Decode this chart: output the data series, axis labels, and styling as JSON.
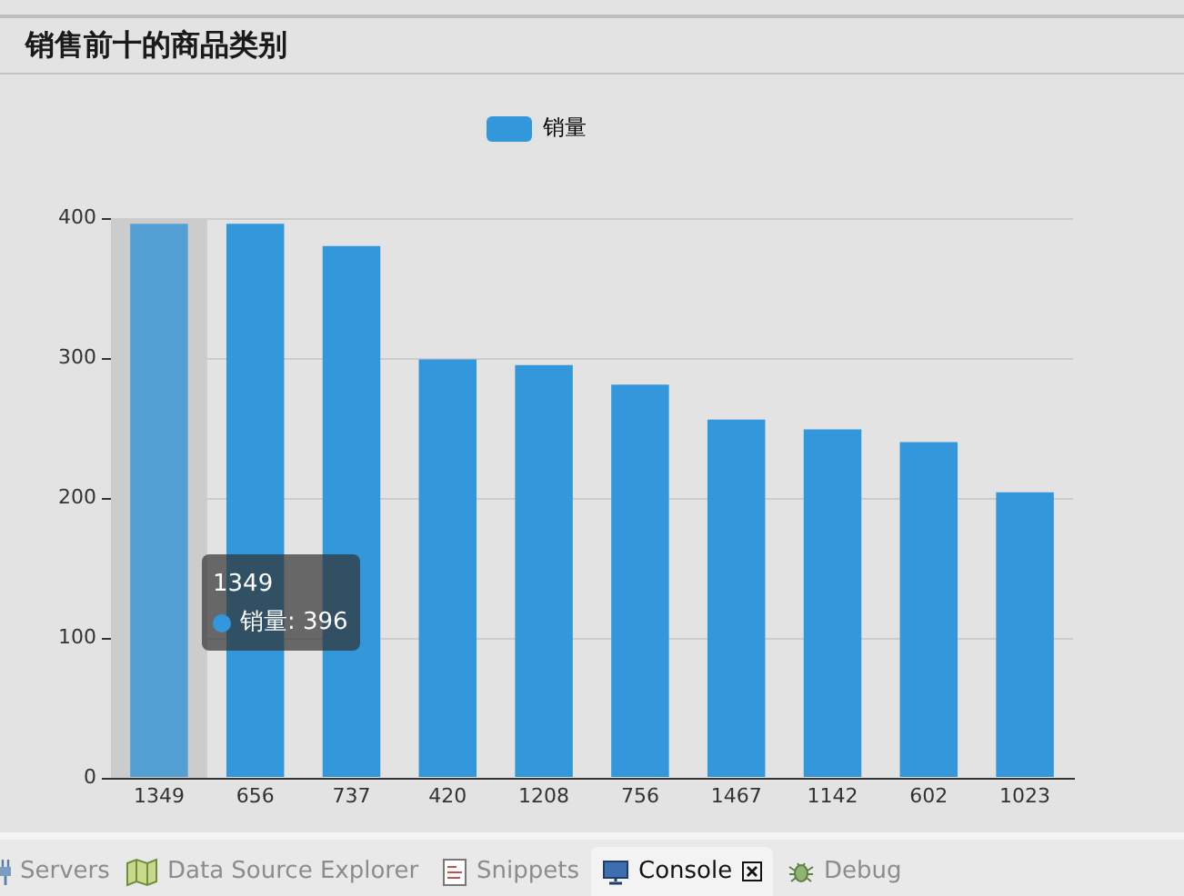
{
  "chart_data": {
    "type": "bar",
    "title": "销售前十的商品类别",
    "categories": [
      "1349",
      "656",
      "737",
      "420",
      "1208",
      "756",
      "1467",
      "1142",
      "602",
      "1023"
    ],
    "series": [
      {
        "name": "销量",
        "color": "#3398db",
        "colors": [
          "#53a0d5",
          "#3398db",
          "#3398db",
          "#3398db",
          "#3398db",
          "#3398db",
          "#3398db",
          "#3398db",
          "#3398db",
          "#3398db"
        ],
        "values": [
          396,
          396,
          380,
          299,
          295,
          281,
          256,
          249,
          240,
          204
        ]
      }
    ],
    "ylim": [
      0,
      400
    ],
    "yticks": [
      0,
      100,
      200,
      300,
      400
    ],
    "grid": "y",
    "legend": "top",
    "bands": [
      {
        "axis": "x",
        "from": "1349",
        "to": "1349",
        "color": "#cccccc"
      }
    ],
    "annotations": [
      "1349",
      "销量: 396",
      "Servers",
      "Data Source Explorer",
      "Snippets",
      "Console",
      "Debug"
    ]
  }
}
